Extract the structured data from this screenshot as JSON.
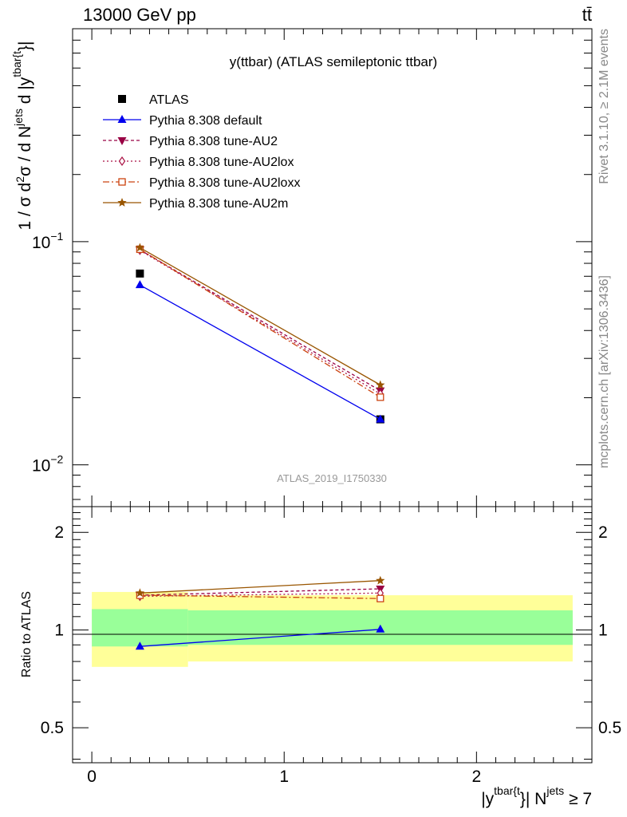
{
  "header": {
    "energy_label": "13000 GeV pp",
    "process_label": "tt̄"
  },
  "side_text": {
    "rivet": "Rivet 3.1.10, ≥ 2.1M events",
    "source": "mcplots.cern.ch [arXiv:1306.3436]"
  },
  "colors": {
    "atlas": "#000000",
    "default": "#0000ee",
    "au2": "#990044",
    "au2lox": "#aa1144",
    "au2loxx": "#cc4411",
    "au2m": "#995500",
    "band_inner": "#99ff99",
    "band_outer": "#ffff99"
  },
  "chart_data": [
    {
      "type": "line",
      "title": "y(ttbar) (ATLAS semileptonic ttbar)",
      "ylabel": "1 / σ d²σ / d N^jets d |y^tbar{t}|",
      "analysis_label": "ATLAS_2019_I1750330",
      "yscale": "log",
      "xlim": [
        -0.1,
        2.6
      ],
      "ylim": [
        0.0065,
        0.9
      ],
      "yticks": [
        {
          "value": 0.1,
          "base": "10",
          "exp": "−1"
        },
        {
          "value": 0.01,
          "base": "10",
          "exp": "−2"
        }
      ],
      "legend_position": "top-left",
      "series": [
        {
          "name": "ATLAS",
          "key": "atlas",
          "marker": "square",
          "dash": "none",
          "x": [
            0.25,
            1.5
          ],
          "y": [
            0.072,
            0.016
          ]
        },
        {
          "name": "Pythia 8.308 default",
          "key": "default",
          "marker": "triangle-up",
          "dash": "solid",
          "x": [
            0.25,
            1.5
          ],
          "y": [
            0.064,
            0.016
          ]
        },
        {
          "name": "Pythia 8.308 tune-AU2",
          "key": "au2",
          "marker": "triangle-down",
          "dash": "4,3",
          "x": [
            0.25,
            1.5
          ],
          "y": [
            0.092,
            0.0215
          ]
        },
        {
          "name": "Pythia 8.308 tune-AU2lox",
          "key": "au2lox",
          "marker": "diamond-open",
          "dash": "2,3",
          "x": [
            0.25,
            1.5
          ],
          "y": [
            0.0915,
            0.0208
          ]
        },
        {
          "name": "Pythia 8.308 tune-AU2loxx",
          "key": "au2loxx",
          "marker": "square-open",
          "dash": "8,3,2,3",
          "x": [
            0.25,
            1.5
          ],
          "y": [
            0.0925,
            0.0201
          ]
        },
        {
          "name": "Pythia 8.308 tune-AU2m",
          "key": "au2m",
          "marker": "star",
          "dash": "solid",
          "x": [
            0.25,
            1.5
          ],
          "y": [
            0.094,
            0.0228
          ]
        }
      ]
    },
    {
      "type": "line",
      "ylabel": "Ratio to ATLAS",
      "xlabel": "|y^tbar{t}| N^jets ≥ 7",
      "xlim": [
        -0.1,
        2.6
      ],
      "ylim": [
        0.39,
        2.4
      ],
      "yscale": "log",
      "yticks": [
        {
          "value": 0.5,
          "label": "0.5"
        },
        {
          "value": 1,
          "label": "1"
        },
        {
          "value": 2,
          "label": "2"
        }
      ],
      "xticks": [
        {
          "value": 0,
          "label": "0"
        },
        {
          "value": 1,
          "label": "1"
        },
        {
          "value": 2,
          "label": "2"
        }
      ],
      "bands": [
        {
          "x0": 0.0,
          "x1": 0.5,
          "inner": [
            0.89,
            1.16
          ],
          "outer": [
            0.77,
            1.31
          ]
        },
        {
          "x0": 0.5,
          "x1": 2.5,
          "inner": [
            0.9,
            1.15
          ],
          "outer": [
            0.8,
            1.28
          ]
        }
      ],
      "series": [
        {
          "name": "Pythia 8.308 default",
          "key": "default",
          "marker": "triangle-up",
          "dash": "solid",
          "x": [
            0.25,
            1.5
          ],
          "y": [
            0.89,
            1.005
          ]
        },
        {
          "name": "Pythia 8.308 tune-AU2",
          "key": "au2",
          "marker": "triangle-down",
          "dash": "4,3",
          "x": [
            0.25,
            1.5
          ],
          "y": [
            1.28,
            1.34
          ]
        },
        {
          "name": "Pythia 8.308 tune-AU2lox",
          "key": "au2lox",
          "marker": "diamond-open",
          "dash": "2,3",
          "x": [
            0.25,
            1.5
          ],
          "y": [
            1.27,
            1.3
          ]
        },
        {
          "name": "Pythia 8.308 tune-AU2loxx",
          "key": "au2loxx",
          "marker": "square-open",
          "dash": "8,3,2,3",
          "x": [
            0.25,
            1.5
          ],
          "y": [
            1.28,
            1.25
          ]
        },
        {
          "name": "Pythia 8.308 tune-AU2m",
          "key": "au2m",
          "marker": "star",
          "dash": "solid",
          "x": [
            0.25,
            1.5
          ],
          "y": [
            1.3,
            1.42
          ]
        }
      ]
    }
  ]
}
